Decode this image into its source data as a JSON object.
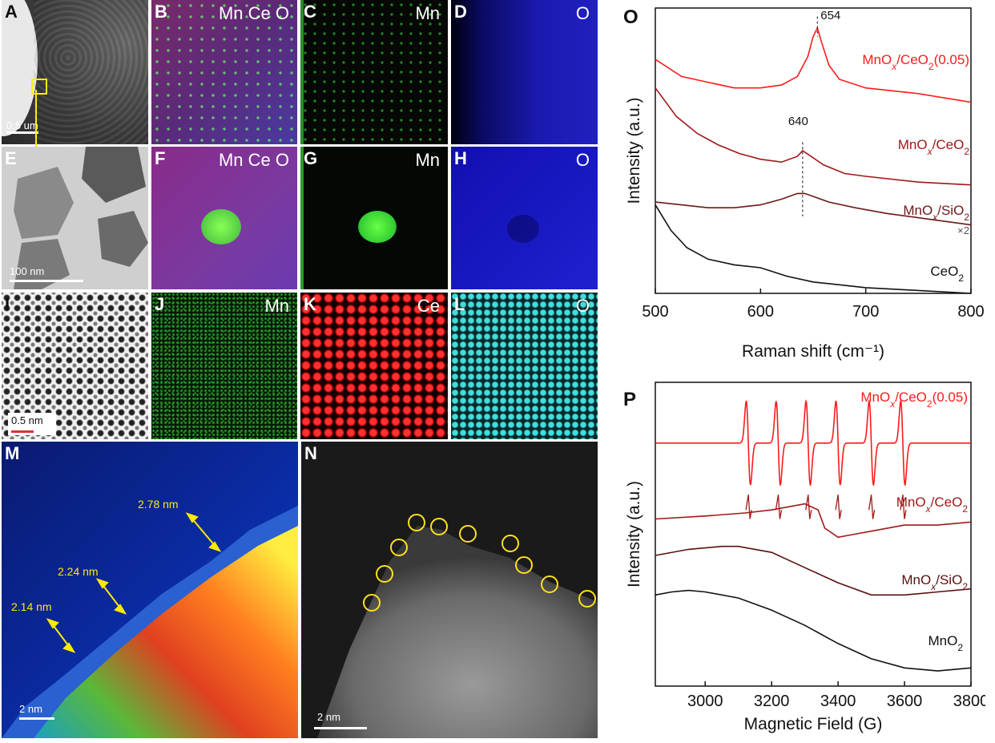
{
  "panels": {
    "A": {
      "label": "A",
      "scale": "0.5 um"
    },
    "B": {
      "label": "B",
      "title": "Mn Ce O"
    },
    "C": {
      "label": "C",
      "title": "Mn"
    },
    "D": {
      "label": "D",
      "title": "O"
    },
    "E": {
      "label": "E",
      "scale": "100 nm"
    },
    "F": {
      "label": "F",
      "title": "Mn Ce O"
    },
    "G": {
      "label": "G",
      "title": "Mn"
    },
    "H": {
      "label": "H",
      "title": "O"
    },
    "I": {
      "label": "I",
      "scale": "0.5 nm"
    },
    "J": {
      "label": "J",
      "title": "Mn"
    },
    "K": {
      "label": "K",
      "title": "Ce"
    },
    "L": {
      "label": "L",
      "title": "O"
    },
    "M": {
      "label": "M",
      "scale": "2 nm",
      "measurements": [
        "2.78 nm",
        "2.24 nm",
        "2.14 nm"
      ]
    },
    "N": {
      "label": "N",
      "scale": "2 nm"
    },
    "O": {
      "label": "O"
    },
    "P": {
      "label": "P"
    }
  },
  "chart_data": [
    {
      "type": "line",
      "id": "O",
      "xlabel": "Raman shift (cm⁻¹)",
      "ylabel": "Intensity (a.u.)",
      "xlim": [
        500,
        800
      ],
      "xticks": [
        "500",
        "600",
        "700",
        "800"
      ],
      "annotations": [
        "654",
        "640",
        "×2"
      ],
      "series": [
        {
          "name": "MnOx/CeO2(0.05)",
          "color": "#ff1a1a",
          "x": [
            500,
            525,
            550,
            575,
            600,
            620,
            635,
            645,
            650,
            654,
            658,
            665,
            675,
            700,
            750,
            800
          ],
          "y": [
            0.82,
            0.76,
            0.74,
            0.72,
            0.72,
            0.73,
            0.76,
            0.83,
            0.9,
            0.93,
            0.88,
            0.8,
            0.75,
            0.72,
            0.7,
            0.67
          ]
        },
        {
          "name": "MnOx/CeO2",
          "color": "#a01818",
          "x": [
            500,
            520,
            540,
            560,
            580,
            600,
            620,
            635,
            640,
            648,
            660,
            680,
            700,
            750,
            800
          ],
          "y": [
            0.72,
            0.62,
            0.56,
            0.52,
            0.49,
            0.47,
            0.46,
            0.48,
            0.5,
            0.48,
            0.45,
            0.42,
            0.41,
            0.39,
            0.38
          ]
        },
        {
          "name": "MnOx/SiO2",
          "color": "#6e1818",
          "x": [
            500,
            525,
            550,
            575,
            600,
            620,
            635,
            642,
            650,
            665,
            690,
            720,
            760,
            800
          ],
          "y": [
            0.32,
            0.31,
            0.3,
            0.3,
            0.31,
            0.33,
            0.35,
            0.35,
            0.34,
            0.32,
            0.3,
            0.28,
            0.26,
            0.24
          ]
        },
        {
          "name": "CeO2",
          "color": "#111111",
          "x": [
            500,
            515,
            530,
            550,
            575,
            600,
            625,
            650,
            675,
            700,
            750,
            800
          ],
          "y": [
            0.31,
            0.22,
            0.16,
            0.12,
            0.1,
            0.09,
            0.06,
            0.04,
            0.03,
            0.02,
            0.01,
            0.0
          ]
        }
      ]
    },
    {
      "type": "line",
      "id": "P",
      "xlabel": "Magnetic Field (G)",
      "ylabel": "Intensity (a.u.)",
      "xlim": [
        2850,
        3800
      ],
      "xticks": [
        "3000",
        "3200",
        "3400",
        "3600",
        "3800"
      ],
      "series": [
        {
          "name": "MnOx/CeO2(0.05)",
          "color": "#ff1a1a",
          "baseline": 0.8,
          "hyperfine_centers": [
            3130,
            3220,
            3310,
            3400,
            3500,
            3595
          ],
          "hyperfine_amp": 0.14
        },
        {
          "name": "MnOx/CeO2",
          "color": "#a01818",
          "x": [
            2850,
            3000,
            3120,
            3200,
            3300,
            3340,
            3360,
            3400,
            3450,
            3500,
            3600,
            3700,
            3800
          ],
          "y": [
            0.55,
            0.56,
            0.57,
            0.58,
            0.6,
            0.58,
            0.52,
            0.49,
            0.5,
            0.51,
            0.53,
            0.53,
            0.54
          ]
        },
        {
          "name": "MnOx/SiO2",
          "color": "#5a1010",
          "x": [
            2850,
            2950,
            3050,
            3100,
            3200,
            3300,
            3400,
            3500,
            3600,
            3700,
            3800
          ],
          "y": [
            0.43,
            0.45,
            0.46,
            0.46,
            0.44,
            0.39,
            0.34,
            0.3,
            0.3,
            0.31,
            0.32
          ]
        },
        {
          "name": "MnO2",
          "color": "#111111",
          "x": [
            2850,
            2900,
            2950,
            3000,
            3100,
            3200,
            3300,
            3400,
            3500,
            3600,
            3700,
            3800
          ],
          "y": [
            0.3,
            0.31,
            0.315,
            0.31,
            0.29,
            0.25,
            0.2,
            0.14,
            0.09,
            0.06,
            0.05,
            0.06
          ]
        }
      ]
    }
  ]
}
